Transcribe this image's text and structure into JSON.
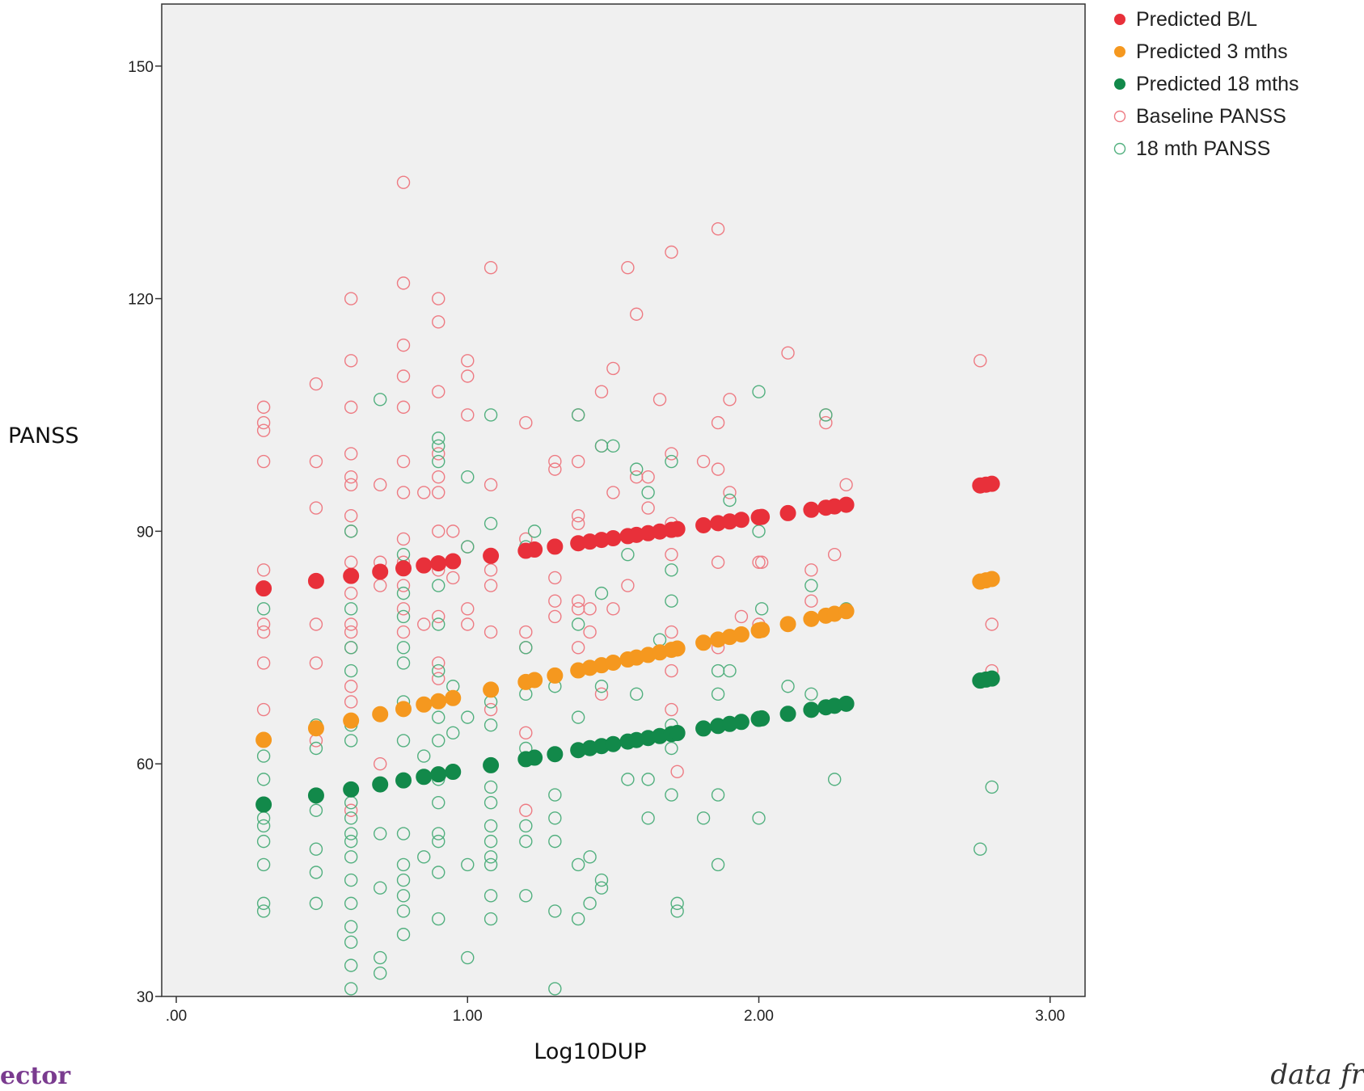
{
  "chart_data": {
    "type": "scatter",
    "title": "",
    "xlabel": "Log10DUP",
    "ylabel": "PANSS",
    "xlim": [
      -0.05,
      3.12
    ],
    "ylim": [
      30,
      158
    ],
    "xticks": [
      0,
      1,
      2,
      3
    ],
    "xtick_labels": [
      ".00",
      "1.00",
      "2.00",
      "3.00"
    ],
    "yticks": [
      30,
      60,
      90,
      120,
      150
    ],
    "ytick_labels": [
      "30",
      "60",
      "90",
      "120",
      "150"
    ],
    "grid": false,
    "legend": "right",
    "series": [
      {
        "name": "Predicted B/L",
        "marker": "filled",
        "color": "#e8303a",
        "intercept": 81.0,
        "slope": 5.4,
        "x": [
          0.3,
          0.48,
          0.6,
          0.7,
          0.78,
          0.85,
          0.9,
          0.95,
          1.08,
          1.2,
          1.23,
          1.3,
          1.38,
          1.42,
          1.46,
          1.5,
          1.55,
          1.58,
          1.62,
          1.66,
          1.7,
          1.72,
          1.81,
          1.86,
          1.9,
          1.94,
          2.0,
          2.01,
          2.1,
          2.18,
          2.23,
          2.26,
          2.3,
          2.76,
          2.78,
          2.8
        ]
      },
      {
        "name": "Predicted 3 mths",
        "marker": "filled",
        "color": "#f5981f",
        "intercept": 60.6,
        "slope": 8.3,
        "x": [
          0.3,
          0.48,
          0.6,
          0.7,
          0.78,
          0.85,
          0.9,
          0.95,
          1.08,
          1.2,
          1.23,
          1.3,
          1.38,
          1.42,
          1.46,
          1.5,
          1.55,
          1.58,
          1.62,
          1.66,
          1.7,
          1.72,
          1.81,
          1.86,
          1.9,
          1.94,
          2.0,
          2.01,
          2.1,
          2.18,
          2.23,
          2.26,
          2.3,
          2.76,
          2.78,
          2.8
        ]
      },
      {
        "name": "Predicted 18 mths",
        "marker": "filled",
        "color": "#12894a",
        "intercept": 52.8,
        "slope": 6.5,
        "x": [
          0.3,
          0.48,
          0.6,
          0.7,
          0.78,
          0.85,
          0.9,
          0.95,
          1.08,
          1.2,
          1.23,
          1.3,
          1.38,
          1.42,
          1.46,
          1.5,
          1.55,
          1.58,
          1.62,
          1.66,
          1.7,
          1.72,
          1.81,
          1.86,
          1.9,
          1.94,
          2.0,
          2.01,
          2.1,
          2.18,
          2.23,
          2.26,
          2.3,
          2.76,
          2.78,
          2.8
        ]
      },
      {
        "name": "Baseline PANSS",
        "marker": "open",
        "color": "#ee7b83",
        "points": [
          [
            0.3,
            106
          ],
          [
            0.3,
            104
          ],
          [
            0.3,
            103
          ],
          [
            0.3,
            99
          ],
          [
            0.3,
            85
          ],
          [
            0.3,
            78
          ],
          [
            0.3,
            77
          ],
          [
            0.3,
            73
          ],
          [
            0.3,
            67
          ],
          [
            0.48,
            109
          ],
          [
            0.48,
            99
          ],
          [
            0.48,
            93
          ],
          [
            0.48,
            78
          ],
          [
            0.48,
            73
          ],
          [
            0.48,
            63
          ],
          [
            0.6,
            120
          ],
          [
            0.6,
            112
          ],
          [
            0.6,
            106
          ],
          [
            0.6,
            100
          ],
          [
            0.6,
            97
          ],
          [
            0.6,
            96
          ],
          [
            0.6,
            92
          ],
          [
            0.6,
            90
          ],
          [
            0.6,
            86
          ],
          [
            0.6,
            82
          ],
          [
            0.6,
            78
          ],
          [
            0.6,
            77
          ],
          [
            0.6,
            75
          ],
          [
            0.6,
            70
          ],
          [
            0.6,
            68
          ],
          [
            0.6,
            54
          ],
          [
            0.7,
            96
          ],
          [
            0.7,
            86
          ],
          [
            0.7,
            83
          ],
          [
            0.7,
            60
          ],
          [
            0.78,
            135
          ],
          [
            0.78,
            122
          ],
          [
            0.78,
            114
          ],
          [
            0.78,
            110
          ],
          [
            0.78,
            106
          ],
          [
            0.78,
            99
          ],
          [
            0.78,
            95
          ],
          [
            0.78,
            89
          ],
          [
            0.78,
            86
          ],
          [
            0.78,
            83
          ],
          [
            0.78,
            80
          ],
          [
            0.78,
            77
          ],
          [
            0.85,
            95
          ],
          [
            0.85,
            78
          ],
          [
            0.9,
            120
          ],
          [
            0.9,
            117
          ],
          [
            0.9,
            108
          ],
          [
            0.9,
            100
          ],
          [
            0.9,
            97
          ],
          [
            0.9,
            95
          ],
          [
            0.9,
            90
          ],
          [
            0.9,
            85
          ],
          [
            0.9,
            79
          ],
          [
            0.9,
            73
          ],
          [
            0.9,
            71
          ],
          [
            0.95,
            90
          ],
          [
            0.95,
            84
          ],
          [
            1.0,
            112
          ],
          [
            1.0,
            110
          ],
          [
            1.0,
            105
          ],
          [
            1.0,
            88
          ],
          [
            1.0,
            80
          ],
          [
            1.0,
            78
          ],
          [
            1.08,
            124
          ],
          [
            1.08,
            96
          ],
          [
            1.08,
            85
          ],
          [
            1.08,
            83
          ],
          [
            1.08,
            77
          ],
          [
            1.08,
            67
          ],
          [
            1.2,
            104
          ],
          [
            1.2,
            89
          ],
          [
            1.2,
            77
          ],
          [
            1.2,
            75
          ],
          [
            1.2,
            64
          ],
          [
            1.2,
            54
          ],
          [
            1.3,
            99
          ],
          [
            1.3,
            98
          ],
          [
            1.3,
            84
          ],
          [
            1.3,
            81
          ],
          [
            1.3,
            79
          ],
          [
            1.38,
            105
          ],
          [
            1.38,
            99
          ],
          [
            1.38,
            92
          ],
          [
            1.38,
            91
          ],
          [
            1.38,
            81
          ],
          [
            1.38,
            80
          ],
          [
            1.38,
            75
          ],
          [
            1.42,
            80
          ],
          [
            1.42,
            77
          ],
          [
            1.46,
            108
          ],
          [
            1.46,
            101
          ],
          [
            1.46,
            69
          ],
          [
            1.5,
            111
          ],
          [
            1.5,
            95
          ],
          [
            1.5,
            80
          ],
          [
            1.55,
            124
          ],
          [
            1.55,
            83
          ],
          [
            1.58,
            118
          ],
          [
            1.58,
            97
          ],
          [
            1.62,
            97
          ],
          [
            1.62,
            93
          ],
          [
            1.66,
            107
          ],
          [
            1.7,
            126
          ],
          [
            1.7,
            100
          ],
          [
            1.7,
            91
          ],
          [
            1.7,
            87
          ],
          [
            1.7,
            77
          ],
          [
            1.7,
            72
          ],
          [
            1.7,
            67
          ],
          [
            1.72,
            59
          ],
          [
            1.81,
            99
          ],
          [
            1.86,
            129
          ],
          [
            1.86,
            104
          ],
          [
            1.86,
            98
          ],
          [
            1.86,
            86
          ],
          [
            1.86,
            75
          ],
          [
            1.9,
            107
          ],
          [
            1.9,
            95
          ],
          [
            1.94,
            79
          ],
          [
            2.0,
            86
          ],
          [
            2.01,
            86
          ],
          [
            2.0,
            78
          ],
          [
            2.1,
            113
          ],
          [
            2.18,
            85
          ],
          [
            2.18,
            81
          ],
          [
            2.23,
            104
          ],
          [
            2.23,
            105
          ],
          [
            2.26,
            87
          ],
          [
            2.3,
            96
          ],
          [
            2.76,
            112
          ],
          [
            2.8,
            78
          ],
          [
            2.8,
            72
          ]
        ]
      },
      {
        "name": "18 mth PANSS",
        "marker": "open",
        "color": "#52b07f",
        "points": [
          [
            0.3,
            80
          ],
          [
            0.3,
            61
          ],
          [
            0.3,
            58
          ],
          [
            0.3,
            53
          ],
          [
            0.3,
            52
          ],
          [
            0.3,
            50
          ],
          [
            0.3,
            47
          ],
          [
            0.3,
            42
          ],
          [
            0.3,
            41
          ],
          [
            0.48,
            65
          ],
          [
            0.48,
            62
          ],
          [
            0.48,
            54
          ],
          [
            0.48,
            49
          ],
          [
            0.48,
            46
          ],
          [
            0.48,
            42
          ],
          [
            0.6,
            90
          ],
          [
            0.6,
            80
          ],
          [
            0.6,
            75
          ],
          [
            0.6,
            72
          ],
          [
            0.6,
            65
          ],
          [
            0.6,
            63
          ],
          [
            0.6,
            55
          ],
          [
            0.6,
            53
          ],
          [
            0.6,
            51
          ],
          [
            0.6,
            50
          ],
          [
            0.6,
            48
          ],
          [
            0.6,
            45
          ],
          [
            0.6,
            42
          ],
          [
            0.6,
            39
          ],
          [
            0.6,
            37
          ],
          [
            0.6,
            34
          ],
          [
            0.6,
            31
          ],
          [
            0.7,
            107
          ],
          [
            0.7,
            51
          ],
          [
            0.7,
            44
          ],
          [
            0.7,
            35
          ],
          [
            0.7,
            33
          ],
          [
            0.78,
            87
          ],
          [
            0.78,
            82
          ],
          [
            0.78,
            79
          ],
          [
            0.78,
            75
          ],
          [
            0.78,
            73
          ],
          [
            0.78,
            68
          ],
          [
            0.78,
            63
          ],
          [
            0.78,
            58
          ],
          [
            0.78,
            51
          ],
          [
            0.78,
            47
          ],
          [
            0.78,
            45
          ],
          [
            0.78,
            43
          ],
          [
            0.78,
            41
          ],
          [
            0.78,
            38
          ],
          [
            0.85,
            61
          ],
          [
            0.85,
            48
          ],
          [
            0.9,
            102
          ],
          [
            0.9,
            101
          ],
          [
            0.9,
            99
          ],
          [
            0.9,
            83
          ],
          [
            0.9,
            78
          ],
          [
            0.9,
            72
          ],
          [
            0.9,
            66
          ],
          [
            0.9,
            63
          ],
          [
            0.9,
            58
          ],
          [
            0.9,
            55
          ],
          [
            0.9,
            51
          ],
          [
            0.9,
            50
          ],
          [
            0.9,
            46
          ],
          [
            0.9,
            40
          ],
          [
            0.95,
            70
          ],
          [
            0.95,
            64
          ],
          [
            1.0,
            97
          ],
          [
            1.0,
            88
          ],
          [
            1.0,
            66
          ],
          [
            1.0,
            47
          ],
          [
            1.0,
            35
          ],
          [
            1.08,
            105
          ],
          [
            1.08,
            91
          ],
          [
            1.08,
            68
          ],
          [
            1.08,
            65
          ],
          [
            1.08,
            57
          ],
          [
            1.08,
            55
          ],
          [
            1.08,
            52
          ],
          [
            1.08,
            50
          ],
          [
            1.08,
            48
          ],
          [
            1.08,
            47
          ],
          [
            1.08,
            43
          ],
          [
            1.08,
            40
          ],
          [
            1.2,
            88
          ],
          [
            1.2,
            75
          ],
          [
            1.2,
            69
          ],
          [
            1.2,
            62
          ],
          [
            1.2,
            52
          ],
          [
            1.2,
            50
          ],
          [
            1.2,
            43
          ],
          [
            1.23,
            90
          ],
          [
            1.3,
            70
          ],
          [
            1.3,
            56
          ],
          [
            1.3,
            53
          ],
          [
            1.3,
            50
          ],
          [
            1.3,
            41
          ],
          [
            1.3,
            31
          ],
          [
            1.38,
            105
          ],
          [
            1.38,
            78
          ],
          [
            1.38,
            66
          ],
          [
            1.38,
            47
          ],
          [
            1.38,
            40
          ],
          [
            1.42,
            48
          ],
          [
            1.42,
            42
          ],
          [
            1.46,
            101
          ],
          [
            1.46,
            82
          ],
          [
            1.46,
            70
          ],
          [
            1.46,
            45
          ],
          [
            1.46,
            44
          ],
          [
            1.5,
            101
          ],
          [
            1.55,
            87
          ],
          [
            1.55,
            58
          ],
          [
            1.58,
            98
          ],
          [
            1.58,
            69
          ],
          [
            1.62,
            95
          ],
          [
            1.62,
            58
          ],
          [
            1.62,
            53
          ],
          [
            1.66,
            76
          ],
          [
            1.7,
            99
          ],
          [
            1.7,
            85
          ],
          [
            1.7,
            81
          ],
          [
            1.7,
            65
          ],
          [
            1.7,
            62
          ],
          [
            1.7,
            56
          ],
          [
            1.72,
            42
          ],
          [
            1.72,
            41
          ],
          [
            1.81,
            53
          ],
          [
            1.86,
            72
          ],
          [
            1.86,
            69
          ],
          [
            1.86,
            56
          ],
          [
            1.86,
            47
          ],
          [
            1.9,
            94
          ],
          [
            1.9,
            72
          ],
          [
            2.0,
            108
          ],
          [
            2.0,
            90
          ],
          [
            2.0,
            53
          ],
          [
            2.01,
            80
          ],
          [
            2.1,
            70
          ],
          [
            2.18,
            83
          ],
          [
            2.18,
            69
          ],
          [
            2.23,
            105
          ],
          [
            2.26,
            58
          ],
          [
            2.3,
            80
          ],
          [
            2.76,
            49
          ],
          [
            2.8,
            57
          ]
        ]
      }
    ]
  },
  "footer": {
    "left": "ector",
    "right": "data fr"
  }
}
